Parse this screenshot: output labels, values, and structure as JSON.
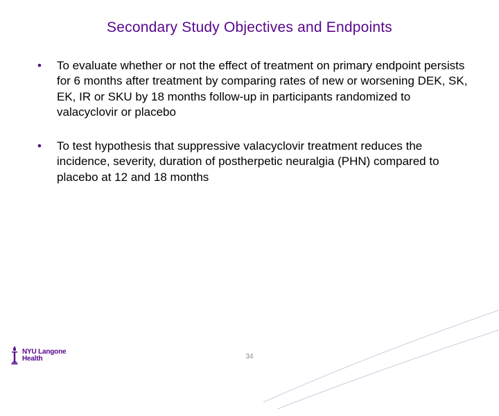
{
  "colors": {
    "title": "#57068c",
    "bullet_marker": "#57068c",
    "body_text": "#000000",
    "logo": "#57068c",
    "swoosh": "#d8d2e4",
    "page_num": "#888888",
    "background": "#ffffff"
  },
  "typography": {
    "title_fontsize": 21,
    "body_fontsize": 17,
    "body_lineheight": 1.32,
    "logo_fontsize": 10,
    "pagenum_fontsize": 10
  },
  "title": "Secondary Study Objectives and Endpoints",
  "bullets": [
    "To evaluate whether or not the effect of treatment on primary endpoint persists for 6 months after treatment by comparing rates of new or worsening DEK, SK, EK, IR or SKU by 18 months follow-up in participants randomized to valacyclovir or placebo",
    "To test hypothesis that suppressive valacyclovir treatment reduces the incidence, severity, duration of postherpetic neuralgia (PHN) compared to placebo at 12 and 18 months"
  ],
  "page_number": "34",
  "logo": {
    "line1": "NYU Langone",
    "line2": "Health"
  }
}
